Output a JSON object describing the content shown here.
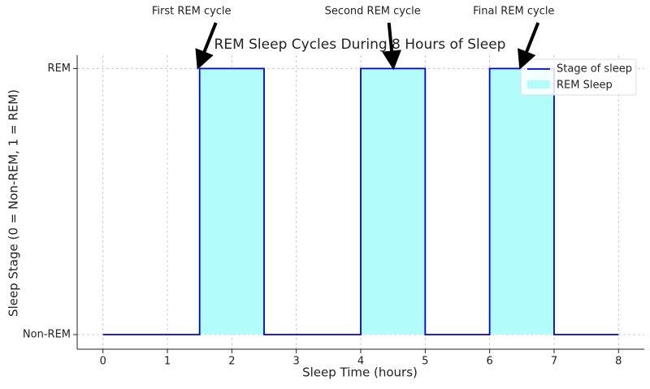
{
  "chart_data": {
    "type": "step",
    "title": "REM Sleep Cycles During 8 Hours of Sleep",
    "x_label": "Sleep Time (hours)",
    "y_label": "Sleep Stage (0 = Non-REM, 1 = REM)",
    "series": [
      {
        "name": "Stage of sleep",
        "color": "#0000e6",
        "x": [
          0,
          1.5,
          1.5,
          2.5,
          2.5,
          4,
          4,
          5,
          5,
          6,
          6,
          7,
          7,
          8
        ],
        "values": [
          0,
          0,
          1,
          1,
          0,
          0,
          1,
          1,
          0,
          0,
          1,
          1,
          0,
          0
        ]
      },
      {
        "name": "REM Sleep",
        "color": "#b2fcfc",
        "spans": [
          [
            1.5,
            2.5
          ],
          [
            4,
            5
          ],
          [
            6,
            7
          ]
        ]
      }
    ],
    "annotations": [
      {
        "text": "First REM cycle",
        "xy": [
          1.5,
          1
        ]
      },
      {
        "text": "Second REM cycle",
        "xy": [
          4.5,
          1
        ]
      },
      {
        "text": "Final REM cycle",
        "xy": [
          6.5,
          1
        ]
      }
    ],
    "xlim": [
      -0.4,
      8.4
    ],
    "ylim": [
      -0.055,
      1.05
    ],
    "xticks": [
      0,
      1,
      2,
      3,
      4,
      5,
      6,
      7,
      8
    ],
    "yticks": [
      {
        "value": 0,
        "label": "Non-REM"
      },
      {
        "value": 1,
        "label": "REM"
      }
    ],
    "grid": true,
    "legend": "upper right"
  }
}
